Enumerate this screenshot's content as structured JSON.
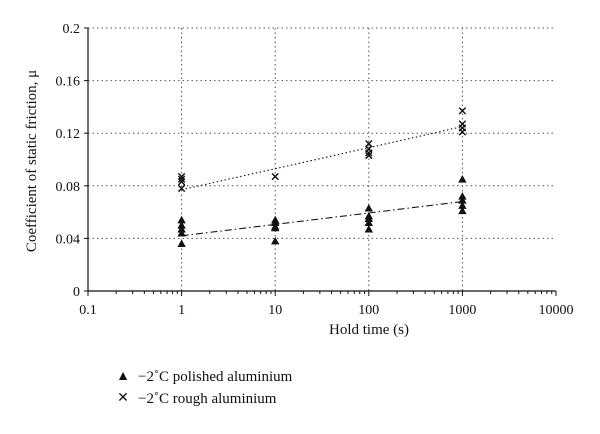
{
  "chart_data": {
    "type": "scatter",
    "xlabel": "Hold time (s)",
    "ylabel": "Coefficient of static friction, μ",
    "xscale": "log",
    "xlim": [
      0.1,
      10000
    ],
    "ylim": [
      0,
      0.2
    ],
    "x_ticks": [
      "0.1",
      "1",
      "10",
      "100",
      "1000",
      "10000"
    ],
    "y_ticks": [
      "0",
      "0.04",
      "0.08",
      "0.12",
      "0.16",
      "0.2"
    ],
    "grid": "dotted, major ticks",
    "legend_position": "below",
    "series": [
      {
        "name": "−2˚C polished aluminium",
        "marker": "filled-triangle",
        "points": [
          [
            1,
            0.054
          ],
          [
            1,
            0.05
          ],
          [
            1,
            0.047
          ],
          [
            1,
            0.044
          ],
          [
            1,
            0.036
          ],
          [
            10,
            0.054
          ],
          [
            10,
            0.052
          ],
          [
            10,
            0.049
          ],
          [
            10,
            0.048
          ],
          [
            10,
            0.038
          ],
          [
            100,
            0.063
          ],
          [
            100,
            0.057
          ],
          [
            100,
            0.055
          ],
          [
            100,
            0.052
          ],
          [
            100,
            0.047
          ],
          [
            1000,
            0.085
          ],
          [
            1000,
            0.072
          ],
          [
            1000,
            0.069
          ],
          [
            1000,
            0.065
          ],
          [
            1000,
            0.061
          ]
        ],
        "trend": {
          "style": "dash-dot",
          "from": [
            1,
            0.042
          ],
          "to": [
            1000,
            0.068
          ]
        }
      },
      {
        "name": "−2˚C rough aluminium",
        "marker": "x",
        "points": [
          [
            1,
            0.087
          ],
          [
            1,
            0.085
          ],
          [
            1,
            0.083
          ],
          [
            1,
            0.078
          ],
          [
            10,
            0.087
          ],
          [
            100,
            0.112
          ],
          [
            100,
            0.108
          ],
          [
            100,
            0.105
          ],
          [
            100,
            0.103
          ],
          [
            1000,
            0.137
          ],
          [
            1000,
            0.127
          ],
          [
            1000,
            0.124
          ],
          [
            1000,
            0.121
          ]
        ],
        "trend": {
          "style": "dotted",
          "from": [
            1,
            0.077
          ],
          "to": [
            1000,
            0.125
          ]
        }
      }
    ]
  }
}
